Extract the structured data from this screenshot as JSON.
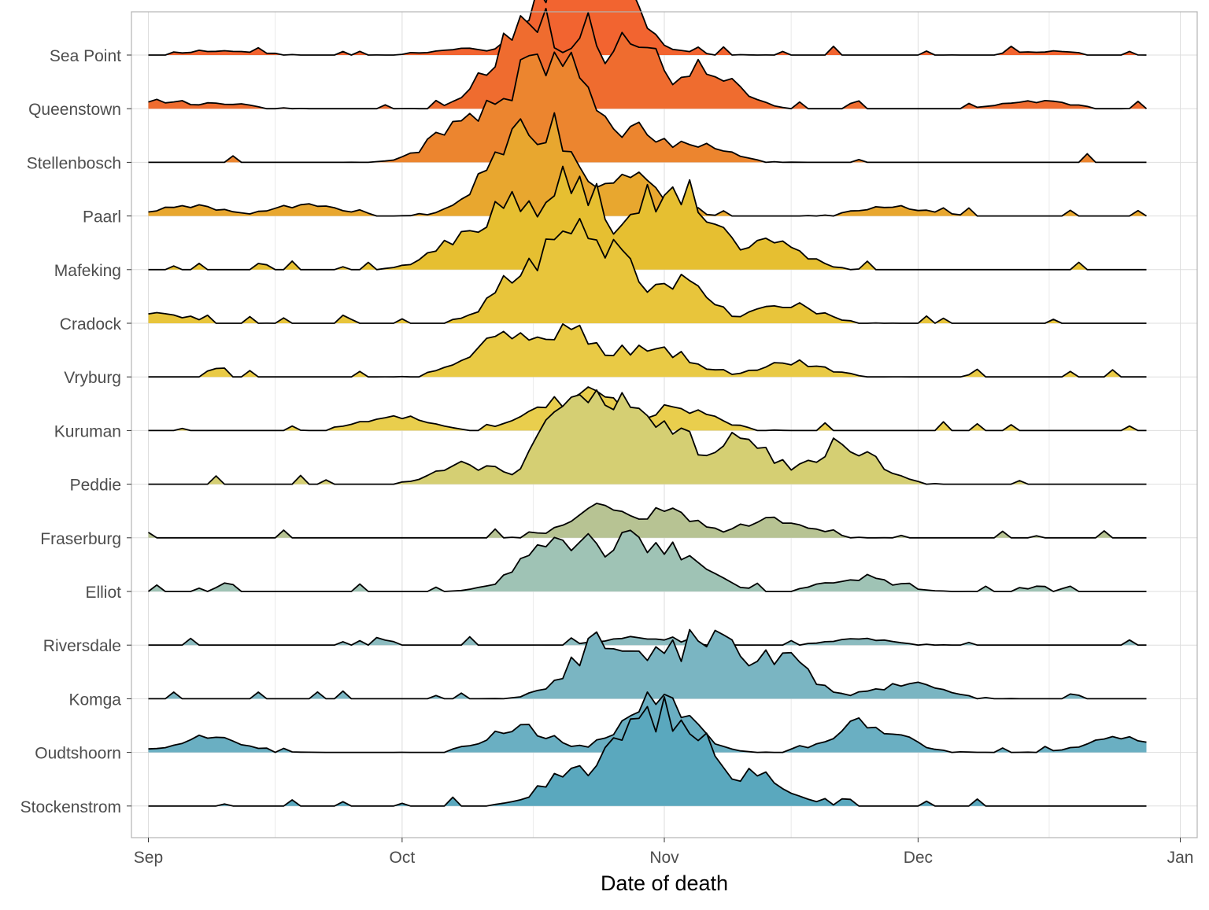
{
  "chart_data": {
    "type": "area",
    "subtype": "ridgeline",
    "title": "",
    "xlabel": "Date of death",
    "ylabel": "",
    "x_range": [
      "1918-09-01",
      "1918-12-28"
    ],
    "xlim": [
      "1918-08-30",
      "1919-01-03"
    ],
    "x_ticks": [
      {
        "date": "1918-09-01",
        "label": "Sep"
      },
      {
        "date": "1918-10-01",
        "label": "Oct"
      },
      {
        "date": "1918-11-01",
        "label": "Nov"
      },
      {
        "date": "1918-12-01",
        "label": "Dec"
      },
      {
        "date": "1919-01-01",
        "label": "Jan"
      }
    ],
    "grid": true,
    "legend": "none",
    "colors": {
      "outline": "#000000",
      "grid": "#dedede",
      "panel_border": "#b3b3b3",
      "tick_text": "#4d4d4d"
    },
    "series": [
      {
        "name": "Sea Point",
        "color": "#f26430",
        "peaks": [
          {
            "date": "1918-09-10",
            "value": 0.05
          },
          {
            "date": "1918-10-09",
            "value": 0.06
          },
          {
            "date": "1918-10-21",
            "value": 0.95
          },
          {
            "date": "1918-10-24",
            "value": 1.0
          },
          {
            "date": "1918-11-01",
            "value": 0.05
          },
          {
            "date": "1918-12-16",
            "value": 0.04
          }
        ]
      },
      {
        "name": "Queenstown",
        "color": "#ef6c2f",
        "peaks": [
          {
            "date": "1918-09-02",
            "value": 0.08
          },
          {
            "date": "1918-09-09",
            "value": 0.06
          },
          {
            "date": "1918-10-16",
            "value": 1.0
          },
          {
            "date": "1918-10-22",
            "value": 0.85
          },
          {
            "date": "1918-10-28",
            "value": 0.7
          },
          {
            "date": "1918-11-05",
            "value": 0.45
          },
          {
            "date": "1918-12-15",
            "value": 0.08
          }
        ]
      },
      {
        "name": "Stellenbosch",
        "color": "#ec852f",
        "peaks": [
          {
            "date": "1918-10-09",
            "value": 0.45
          },
          {
            "date": "1918-10-13",
            "value": 0.7
          },
          {
            "date": "1918-10-16",
            "value": 0.95
          },
          {
            "date": "1918-10-20",
            "value": 1.0
          },
          {
            "date": "1918-10-28",
            "value": 0.35
          },
          {
            "date": "1918-11-04",
            "value": 0.2
          }
        ]
      },
      {
        "name": "Paarl",
        "color": "#e8a72f",
        "peaks": [
          {
            "date": "1918-09-06",
            "value": 0.1
          },
          {
            "date": "1918-09-20",
            "value": 0.12
          },
          {
            "date": "1918-10-15",
            "value": 0.95
          },
          {
            "date": "1918-10-18",
            "value": 1.0
          },
          {
            "date": "1918-10-27",
            "value": 0.45
          },
          {
            "date": "1918-11-28",
            "value": 0.1
          }
        ]
      },
      {
        "name": "Mafeking",
        "color": "#e6bf31",
        "peaks": [
          {
            "date": "1918-10-09",
            "value": 0.35
          },
          {
            "date": "1918-10-14",
            "value": 0.7
          },
          {
            "date": "1918-10-21",
            "value": 1.0
          },
          {
            "date": "1918-10-30",
            "value": 0.8
          },
          {
            "date": "1918-11-03",
            "value": 0.9
          },
          {
            "date": "1918-11-13",
            "value": 0.3
          }
        ]
      },
      {
        "name": "Cradock",
        "color": "#e8c53b",
        "peaks": [
          {
            "date": "1918-09-02",
            "value": 0.1
          },
          {
            "date": "1918-10-17",
            "value": 0.7
          },
          {
            "date": "1918-10-20",
            "value": 1.0
          },
          {
            "date": "1918-10-25",
            "value": 0.75
          },
          {
            "date": "1918-11-02",
            "value": 0.45
          },
          {
            "date": "1918-11-15",
            "value": 0.2
          }
        ]
      },
      {
        "name": "Vryburg",
        "color": "#e9ca45",
        "peaks": [
          {
            "date": "1918-10-13",
            "value": 0.45
          },
          {
            "date": "1918-10-20",
            "value": 0.5
          },
          {
            "date": "1918-10-28",
            "value": 0.3
          },
          {
            "date": "1918-11-01",
            "value": 0.25
          },
          {
            "date": "1918-11-16",
            "value": 0.15
          }
        ]
      },
      {
        "name": "Kuruman",
        "color": "#e9ce4d",
        "peaks": [
          {
            "date": "1918-09-30",
            "value": 0.15
          },
          {
            "date": "1918-10-20",
            "value": 0.3
          },
          {
            "date": "1918-10-23",
            "value": 0.4
          },
          {
            "date": "1918-11-03",
            "value": 0.25
          }
        ]
      },
      {
        "name": "Peddie",
        "color": "#d5cf73",
        "peaks": [
          {
            "date": "1918-10-09",
            "value": 0.2
          },
          {
            "date": "1918-10-22",
            "value": 1.0
          },
          {
            "date": "1918-10-27",
            "value": 0.9
          },
          {
            "date": "1918-11-01",
            "value": 0.7
          },
          {
            "date": "1918-11-10",
            "value": 0.5
          },
          {
            "date": "1918-11-22",
            "value": 0.4
          }
        ]
      },
      {
        "name": "Fraserburg",
        "color": "#b7c393",
        "peaks": [
          {
            "date": "1918-10-25",
            "value": 0.3
          },
          {
            "date": "1918-11-01",
            "value": 0.3
          },
          {
            "date": "1918-11-14",
            "value": 0.2
          }
        ]
      },
      {
        "name": "Elliot",
        "color": "#9fc3b5",
        "peaks": [
          {
            "date": "1918-10-19",
            "value": 0.5
          },
          {
            "date": "1918-10-23",
            "value": 0.55
          },
          {
            "date": "1918-10-28",
            "value": 0.55
          },
          {
            "date": "1918-11-02",
            "value": 0.45
          },
          {
            "date": "1918-11-24",
            "value": 0.15
          }
        ]
      },
      {
        "name": "Riversdale",
        "color": "#8cbcc0",
        "peaks": [
          {
            "date": "1918-10-29",
            "value": 0.08
          },
          {
            "date": "1918-11-24",
            "value": 0.06
          }
        ]
      },
      {
        "name": "Komga",
        "color": "#7ab5c2",
        "peaks": [
          {
            "date": "1918-10-25",
            "value": 0.6
          },
          {
            "date": "1918-11-01",
            "value": 0.6
          },
          {
            "date": "1918-11-06",
            "value": 0.7
          },
          {
            "date": "1918-11-14",
            "value": 0.45
          },
          {
            "date": "1918-11-30",
            "value": 0.15
          }
        ]
      },
      {
        "name": "Oudtshoorn",
        "color": "#6aafc2",
        "peaks": [
          {
            "date": "1918-09-08",
            "value": 0.15
          },
          {
            "date": "1918-10-15",
            "value": 0.25
          },
          {
            "date": "1918-10-31",
            "value": 0.55
          },
          {
            "date": "1918-11-25",
            "value": 0.3
          },
          {
            "date": "1918-12-25",
            "value": 0.15
          }
        ]
      },
      {
        "name": "Stockenstrom",
        "color": "#5aa8be",
        "peaks": [
          {
            "date": "1918-10-22",
            "value": 0.4
          },
          {
            "date": "1918-10-29",
            "value": 0.9
          },
          {
            "date": "1918-10-31",
            "value": 1.0
          },
          {
            "date": "1918-11-04",
            "value": 0.75
          },
          {
            "date": "1918-11-11",
            "value": 0.35
          }
        ]
      }
    ]
  }
}
